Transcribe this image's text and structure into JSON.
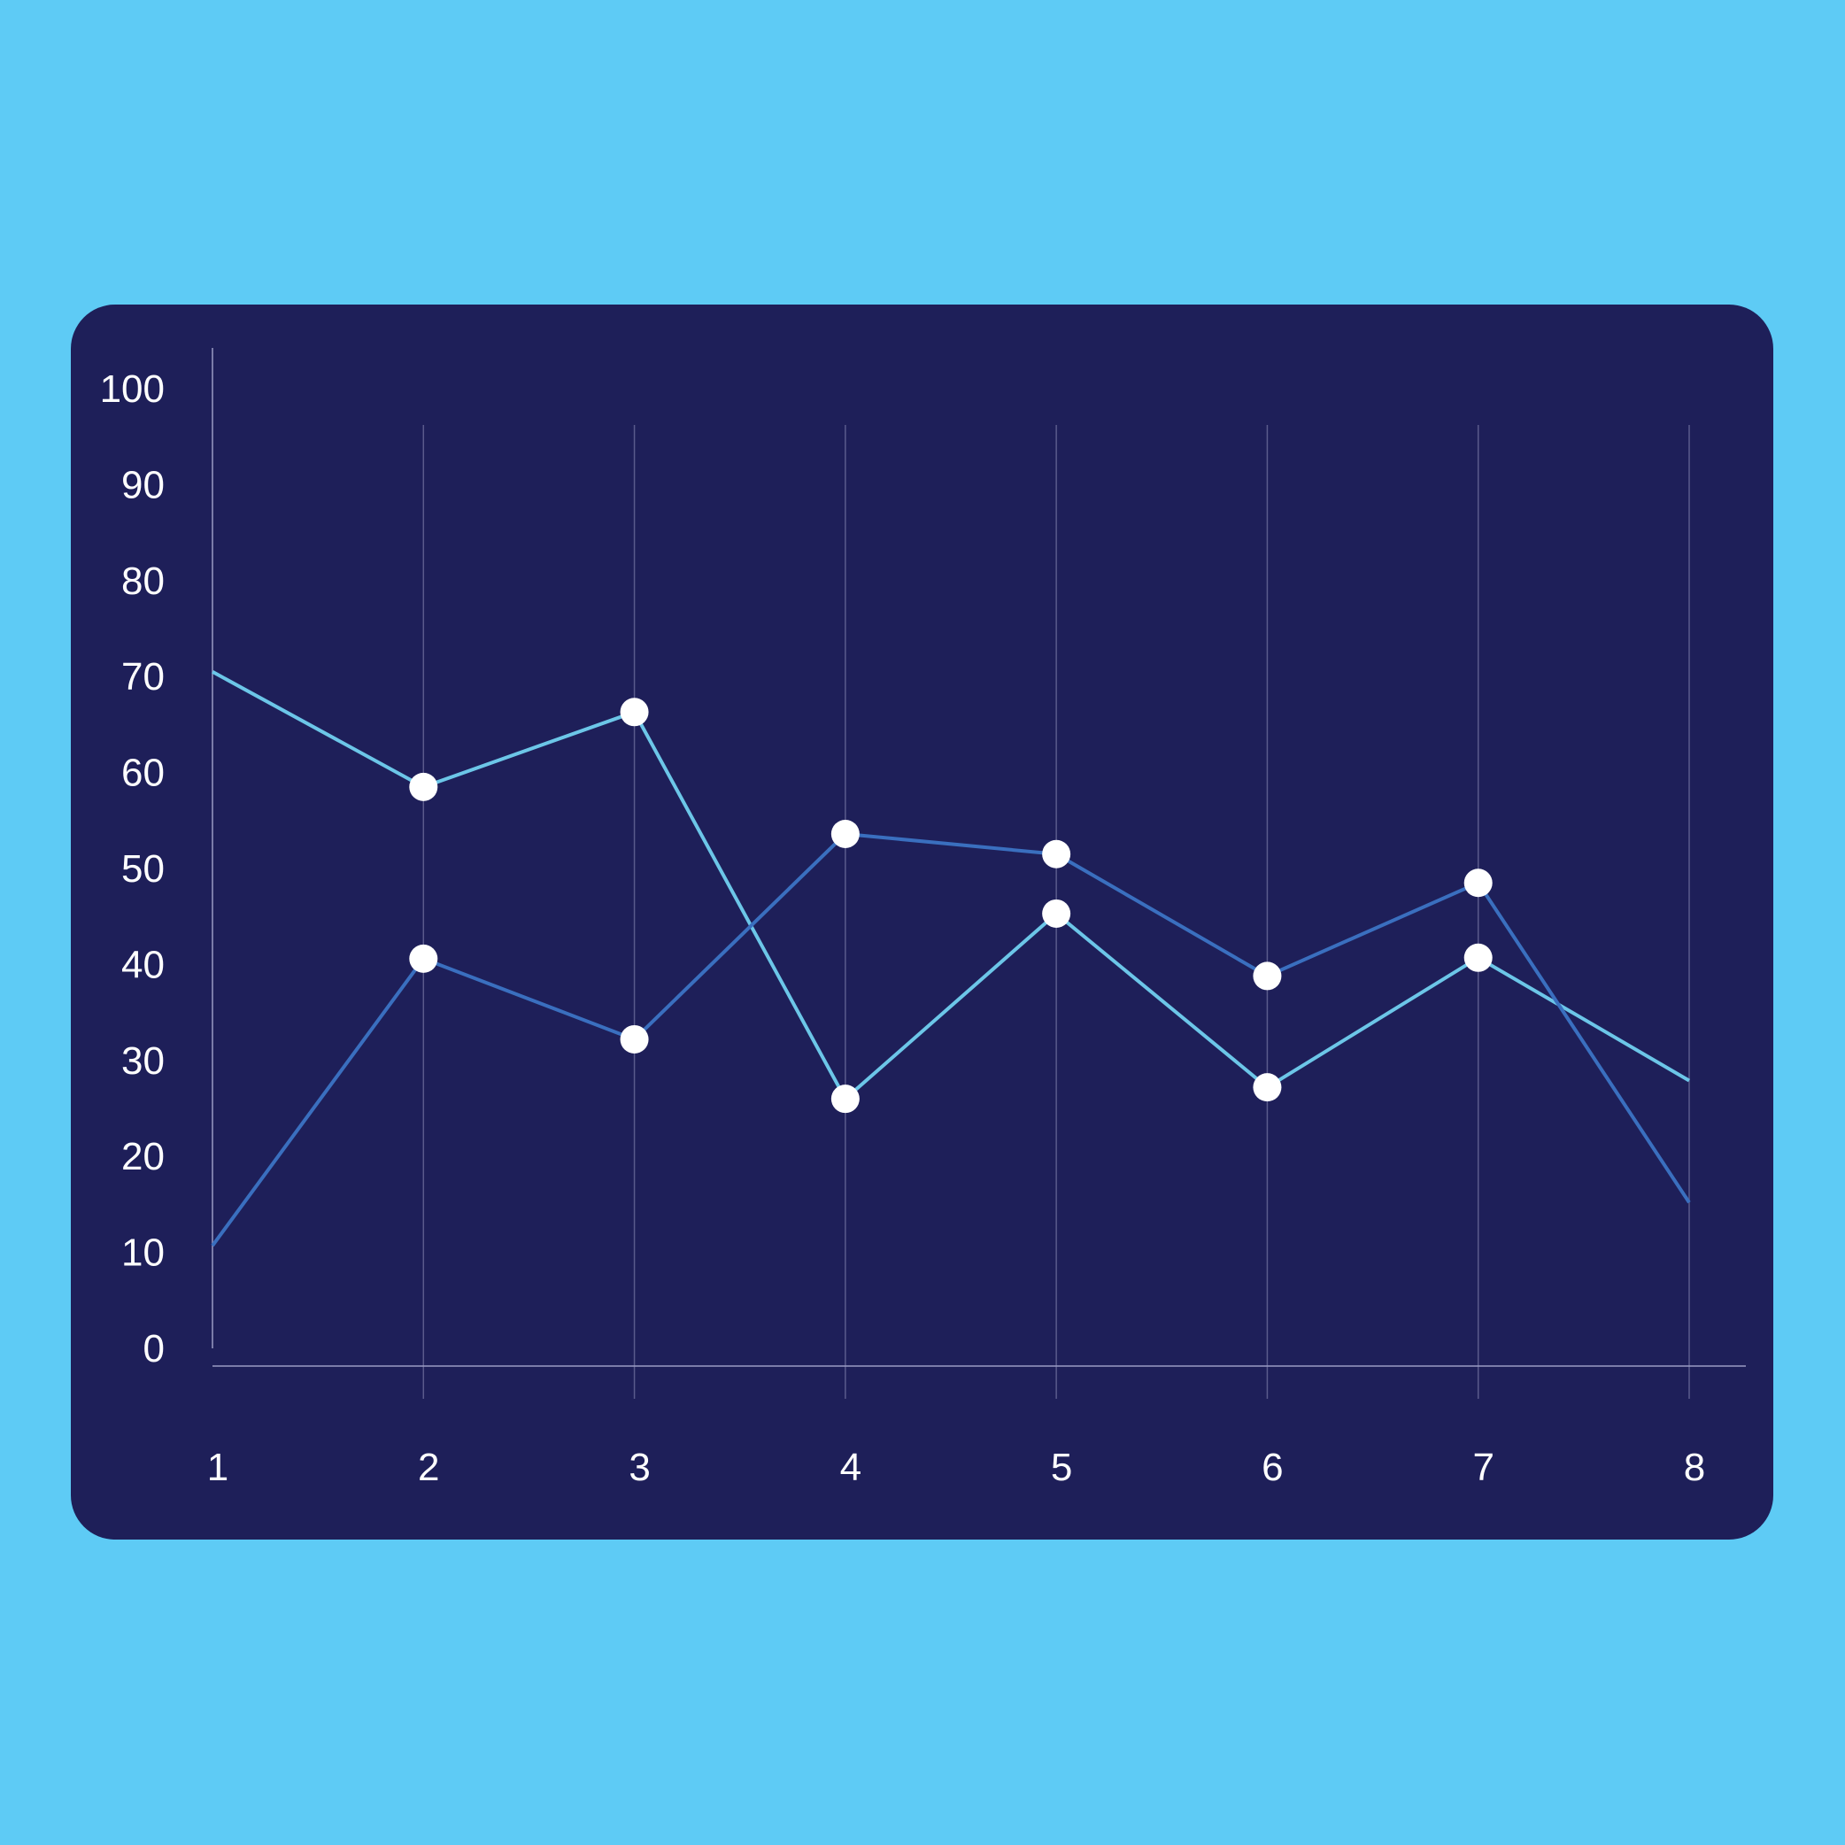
{
  "colors": {
    "background": "#5ecbf5",
    "card": "#1e1f59",
    "gridline": "#5a5b8c",
    "axis": "#9a9bc4",
    "point": "#ffffff"
  },
  "chart_data": {
    "type": "line",
    "title": "",
    "xlabel": "",
    "ylabel": "",
    "x": [
      1,
      2,
      3,
      4,
      5,
      6,
      7,
      8
    ],
    "x_tick_labels": [
      "1",
      "2",
      "3",
      "4",
      "5",
      "6",
      "7",
      "8"
    ],
    "y_tick_labels": [
      "0",
      "10",
      "20",
      "30",
      "40",
      "50",
      "60",
      "70",
      "80",
      "90",
      "100"
    ],
    "ylim": [
      0,
      100
    ],
    "grid": "vertical",
    "legend": "none",
    "series": [
      {
        "color": "#6cc6e8",
        "values": [
          70.5,
          58.5,
          66.3,
          26.0,
          45.3,
          27.2,
          40.7,
          27.9
        ],
        "markers": [
          false,
          true,
          true,
          true,
          true,
          true,
          true,
          false
        ]
      },
      {
        "color": "#3a6fbf",
        "values": [
          10.7,
          40.6,
          32.2,
          53.6,
          51.5,
          38.8,
          48.5,
          15.2
        ],
        "markers": [
          false,
          true,
          true,
          true,
          true,
          true,
          true,
          false
        ]
      }
    ]
  }
}
